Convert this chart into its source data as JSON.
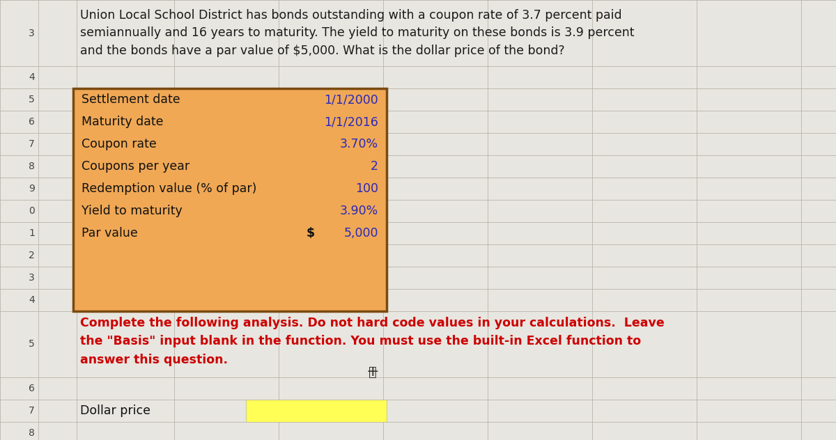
{
  "title_text": "Union Local School District has bonds outstanding with a coupon rate of 3.7 percent paid\nsemiannually and 16 years to maturity. The yield to maturity on these bonds is 3.9 percent\nand the bonds have a par value of $5,000. What is the dollar price of the bond?",
  "title_color": "#1a1a1a",
  "title_fontsize": 12.5,
  "bg_color": "#e8e6e0",
  "cell_color": "#dedad2",
  "grid_color": "#b8b4aa",
  "row_numbers": [
    "3",
    "4",
    "5",
    "6",
    "7",
    "8",
    "9",
    "0",
    "1",
    "2",
    "3",
    "4",
    "5",
    "6",
    "7",
    "8"
  ],
  "row_number_color": "#444444",
  "table_bg": "#f0a855",
  "table_border": "#7a4a10",
  "table_labels": [
    "Settlement date",
    "Maturity date",
    "Coupon rate",
    "Coupons per year",
    "Redemption value (% of par)",
    "Yield to maturity",
    "Par value"
  ],
  "table_values": [
    "1/1/2000",
    "1/1/2016",
    "3.70%",
    "2",
    "100",
    "3.90%",
    "5,000"
  ],
  "table_value_color": "#2828bb",
  "table_label_color": "#111111",
  "dollar_sign": "$",
  "instruction_text": "Complete the following analysis. Do not hard code values in your calculations.  Leave\nthe \"Basis\" input blank in the function. You must use the built-in Excel function to\nanswer this question.",
  "instruction_color": "#cc0000",
  "instruction_fontsize": 12.5,
  "dollar_price_label": "Dollar price",
  "dollar_price_label_color": "#111111",
  "dollar_price_cell_color": "#ffff55"
}
